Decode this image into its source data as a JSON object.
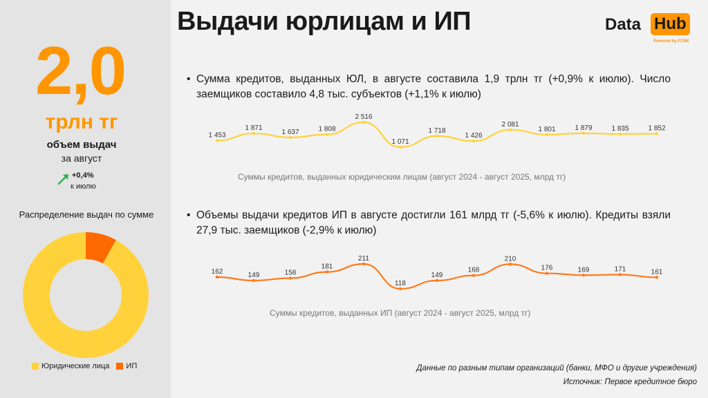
{
  "title": "Выдачи юрлицам и ИП",
  "logo": {
    "part1": "Data",
    "part2": "Hub",
    "powered": "Powered by FCBK"
  },
  "sidebar": {
    "value": "2,0",
    "unit": "трлн тг",
    "label": "объем выдач",
    "period": "за август",
    "change_value": "+0,4%",
    "change_period": "к июлю",
    "distribution_title": "Распределение выдач по сумме",
    "legend": [
      {
        "label": "Юридические лица",
        "color": "#ffd23c"
      },
      {
        "label": "ИП",
        "color": "#ff6a00"
      }
    ]
  },
  "bullets": {
    "legal": "Сумма кредитов, выданных ЮЛ, в августе составила 1,9 трлн тг (+0,9% к июлю). Число заемщиков составило 4,8 тыс. субъектов (+1,1% к июлю)",
    "ip": "Объемы выдачи кредитов ИП в августе достигли 161 млрд тг (-5,6% к июлю). Кредиты взяли 27,9 тыс. заемщиков (-2,9% к июлю)"
  },
  "notes": {
    "line1": "Данные по разным типам организаций (банки, МФО и другие учреждения)",
    "line2": "Источник: Первое кредитное бюро"
  },
  "chart_data": [
    {
      "type": "line",
      "title": "Суммы кредитов, выданных юридическим лицам (август 2024 - август 2025, млрд тг)",
      "color": "#ffd23c",
      "values": [
        1453,
        1871,
        1637,
        1808,
        2516,
        1071,
        1718,
        1426,
        2081,
        1801,
        1879,
        1835,
        1852
      ],
      "labels": [
        "1 453",
        "1 871",
        "1 637",
        "1 808",
        "2 516",
        "1 071",
        "1 718",
        "1 426",
        "2 081",
        "1 801",
        "1 879",
        "1 835",
        "1 852"
      ]
    },
    {
      "type": "line",
      "title": "Суммы кредитов, выданных ИП (август 2024 - август 2025, млрд тг)",
      "color": "#ff7a1a",
      "values": [
        162,
        149,
        158,
        181,
        211,
        118,
        149,
        168,
        210,
        176,
        169,
        171,
        161
      ],
      "labels": [
        "162",
        "149",
        "158",
        "181",
        "211",
        "118",
        "149",
        "168",
        "210",
        "176",
        "169",
        "171",
        "161"
      ]
    },
    {
      "type": "pie",
      "title": "Распределение выдач по сумме",
      "categories": [
        "Юридические лица",
        "ИП"
      ],
      "values": [
        92,
        8
      ],
      "colors": [
        "#ffd23c",
        "#ff6a00"
      ]
    }
  ]
}
